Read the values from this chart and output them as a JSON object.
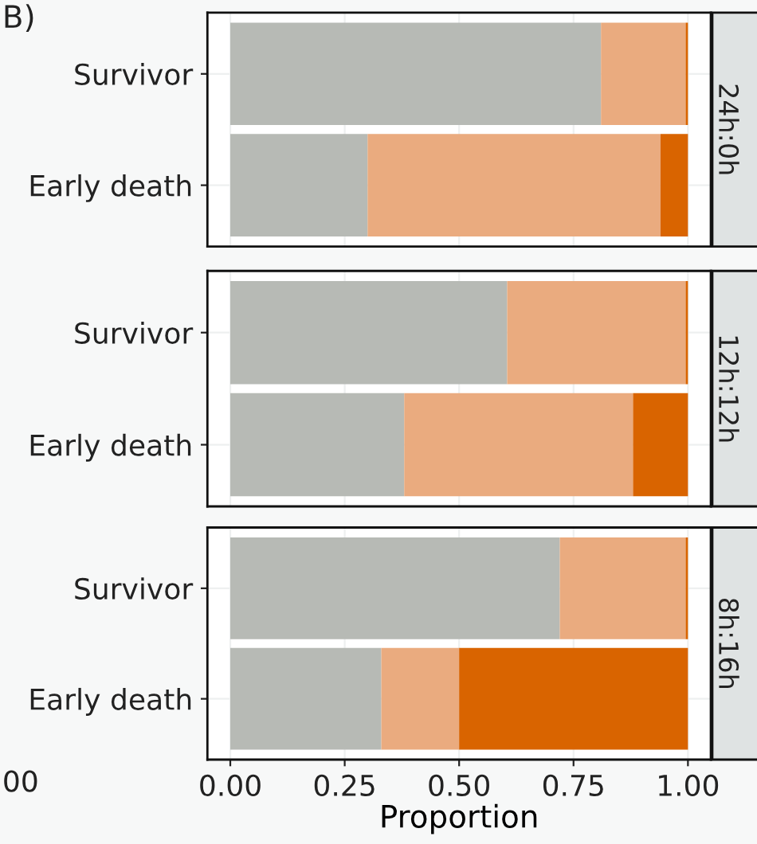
{
  "chart_data": [
    {
      "type": "bar",
      "title": "24h:0h",
      "orientation": "horizontal",
      "stacked": true,
      "categories": [
        "Survivor",
        "Early death"
      ],
      "annotations": [
        "B)"
      ],
      "series": [
        {
          "color": "#b7bab5",
          "values": [
            0.81,
            0.3
          ]
        },
        {
          "color": "#eaab7f",
          "values": [
            0.185,
            0.64
          ]
        },
        {
          "color": "#d96400",
          "values": [
            0.005,
            0.06
          ]
        }
      ],
      "xlim": [
        -0.05,
        1.05
      ],
      "xticks": [
        {
          "value": 0,
          "label": null
        },
        {
          "value": 0.25,
          "label": null
        },
        {
          "value": 0.5,
          "label": null
        },
        {
          "value": 0.75,
          "label": null
        },
        {
          "value": 1,
          "label": null
        }
      ],
      "grid": true,
      "tick_labels": "y"
    },
    {
      "type": "bar",
      "title": "12h:12h",
      "orientation": "horizontal",
      "stacked": true,
      "categories": [
        "Survivor",
        "Early death"
      ],
      "series": [
        {
          "color": "#b7bab5",
          "values": [
            0.605,
            0.38
          ]
        },
        {
          "color": "#eaab7f",
          "values": [
            0.39,
            0.5
          ]
        },
        {
          "color": "#d96400",
          "values": [
            0.005,
            0.12
          ]
        }
      ],
      "xlim": [
        -0.05,
        1.05
      ],
      "xticks": [
        {
          "value": 0,
          "label": null
        },
        {
          "value": 0.25,
          "label": null
        },
        {
          "value": 0.5,
          "label": null
        },
        {
          "value": 0.75,
          "label": null
        },
        {
          "value": 1,
          "label": null
        }
      ],
      "grid": true,
      "tick_labels": "y"
    },
    {
      "type": "bar",
      "title": "8h:16h",
      "orientation": "horizontal",
      "stacked": true,
      "categories": [
        "Survivor",
        "Early death"
      ],
      "xlabel": "Proportion",
      "annotations": [
        "00"
      ],
      "series": [
        {
          "color": "#b7bab5",
          "values": [
            0.72,
            0.33
          ]
        },
        {
          "color": "#eaab7f",
          "values": [
            0.275,
            0.17
          ]
        },
        {
          "color": "#d96400",
          "values": [
            0.005,
            0.5
          ]
        }
      ],
      "xlim": [
        -0.05,
        1.05
      ],
      "xticks": [
        {
          "value": 0,
          "label": "0.00"
        },
        {
          "value": 0.25,
          "label": "0.25"
        },
        {
          "value": 0.5,
          "label": "0.50"
        },
        {
          "value": 0.75,
          "label": "0.75"
        },
        {
          "value": 1,
          "label": "1.00"
        }
      ],
      "grid": true
    }
  ]
}
